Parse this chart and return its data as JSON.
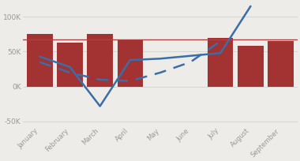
{
  "months": [
    "January",
    "February",
    "March",
    "April",
    "May",
    "June",
    "July",
    "August",
    "September"
  ],
  "bar_values": [
    75000,
    63000,
    75000,
    68000,
    0,
    0,
    70000,
    58000,
    65000
  ],
  "bar_positions": [
    0,
    1,
    2,
    3,
    4,
    5,
    6,
    7,
    8
  ],
  "solid_line_x": [
    0,
    1,
    2,
    3,
    4,
    5,
    6,
    7
  ],
  "solid_line_y": [
    43000,
    28000,
    -28000,
    38000,
    40000,
    44000,
    48000,
    115000
  ],
  "dashed_line_x": [
    0,
    1,
    2,
    3,
    4,
    5,
    6
  ],
  "dashed_line_y": [
    35000,
    20000,
    10000,
    8000,
    20000,
    35000,
    65000
  ],
  "ref_line_y": 67000,
  "bar_color": "#a33232",
  "line_color": "#3a6ea8",
  "ref_line_color": "#b04040",
  "background_color": "#eeece9",
  "ylim": [
    -55000,
    120000
  ],
  "yticks": [
    -50000,
    0,
    50000,
    100000
  ],
  "ytick_labels": [
    "-50K",
    "0K",
    "50K",
    "100K"
  ],
  "bar_width": 0.85
}
